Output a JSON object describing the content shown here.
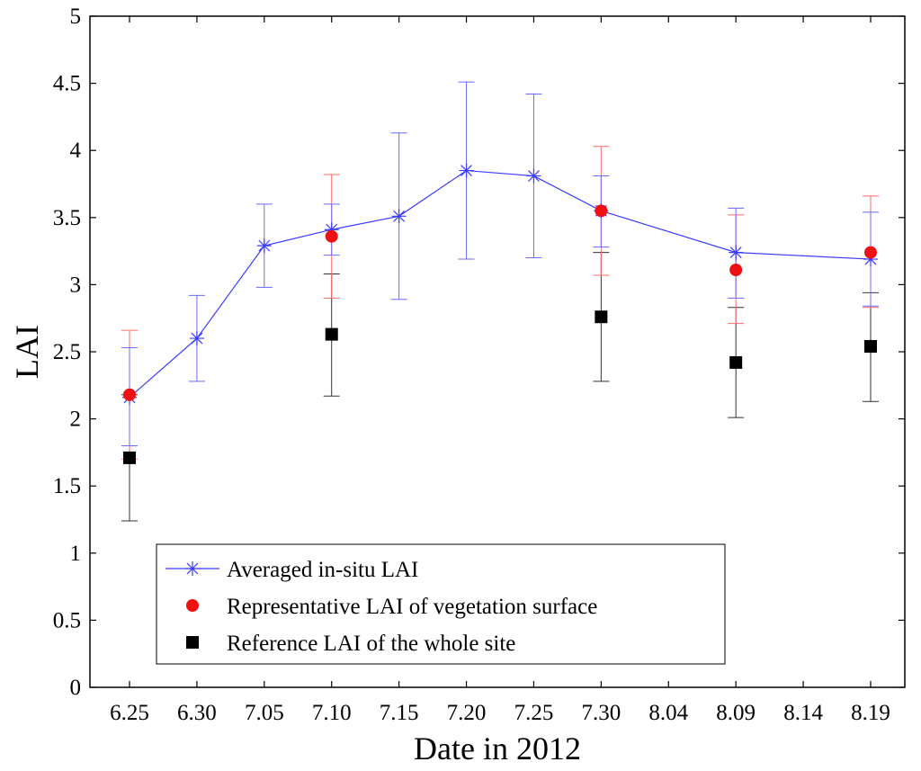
{
  "chart_data": {
    "type": "scatter",
    "title": "",
    "xlabel": "Date in 2012",
    "ylabel": "LAI",
    "categories": [
      "6.25",
      "6.30",
      "7.05",
      "7.10",
      "7.15",
      "7.20",
      "7.25",
      "7.30",
      "8.04",
      "8.09",
      "8.14",
      "8.19"
    ],
    "yticks": [
      "0",
      "0.5",
      "1",
      "1.5",
      "2",
      "2.5",
      "3",
      "3.5",
      "4",
      "4.5",
      "5"
    ],
    "ylim": [
      0,
      5
    ],
    "grid": false,
    "legend_position": "bottom-left",
    "series": [
      {
        "name": "Averaged in-situ LAI",
        "marker": "star-line",
        "color": "#3a3aff",
        "points": [
          {
            "x": "6.25",
            "y": 2.16,
            "low": 1.8,
            "high": 2.53
          },
          {
            "x": "6.30",
            "y": 2.6,
            "low": 2.28,
            "high": 2.92
          },
          {
            "x": "7.05",
            "y": 3.29,
            "low": 2.98,
            "high": 3.6
          },
          {
            "x": "7.10",
            "y": 3.41,
            "low": 3.22,
            "high": 3.6
          },
          {
            "x": "7.15",
            "y": 3.51,
            "low": 2.89,
            "high": 4.13
          },
          {
            "x": "7.20",
            "y": 3.85,
            "low": 3.19,
            "high": 4.51
          },
          {
            "x": "7.25",
            "y": 3.81,
            "low": 3.2,
            "high": 4.42
          },
          {
            "x": "7.30",
            "y": 3.55,
            "low": 3.28,
            "high": 3.81
          },
          {
            "x": "8.09",
            "y": 3.24,
            "low": 2.9,
            "high": 3.57
          },
          {
            "x": "8.19",
            "y": 3.19,
            "low": 2.84,
            "high": 3.54
          }
        ]
      },
      {
        "name": "Representative LAI of vegetation surface",
        "marker": "circle",
        "color": "#ee1111",
        "points": [
          {
            "x": "6.25",
            "y": 2.18,
            "low": 1.7,
            "high": 2.66
          },
          {
            "x": "7.10",
            "y": 3.36,
            "low": 2.9,
            "high": 3.82
          },
          {
            "x": "7.30",
            "y": 3.55,
            "low": 3.07,
            "high": 4.03
          },
          {
            "x": "8.09",
            "y": 3.11,
            "low": 2.71,
            "high": 3.52
          },
          {
            "x": "8.19",
            "y": 3.24,
            "low": 2.83,
            "high": 3.66
          }
        ]
      },
      {
        "name": "Reference LAI of the whole site",
        "marker": "square",
        "color": "#000000",
        "points": [
          {
            "x": "6.25",
            "y": 1.71,
            "low": 1.24,
            "high": 2.18
          },
          {
            "x": "7.10",
            "y": 2.63,
            "low": 2.17,
            "high": 3.08
          },
          {
            "x": "7.30",
            "y": 2.76,
            "low": 2.28,
            "high": 3.24
          },
          {
            "x": "8.09",
            "y": 2.42,
            "low": 2.01,
            "high": 2.83
          },
          {
            "x": "8.19",
            "y": 2.54,
            "low": 2.13,
            "high": 2.94
          }
        ]
      }
    ]
  }
}
